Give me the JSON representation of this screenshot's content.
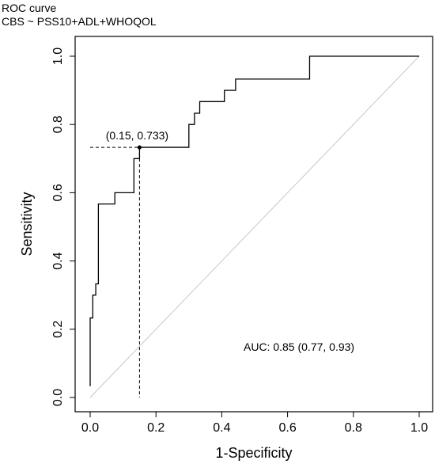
{
  "header": {
    "title": "ROC curve",
    "subtitle": "CBS ~ PSS10+ADL+WHOQOL"
  },
  "chart_data": {
    "type": "line",
    "title": "ROC curve",
    "subtitle": "CBS ~ PSS10+ADL+WHOQOL",
    "xlabel": "1-Specificity",
    "ylabel": "Sensitivity",
    "xlim": [
      0,
      1
    ],
    "ylim": [
      0,
      1
    ],
    "xticks": [
      "0.0",
      "0.2",
      "0.4",
      "0.6",
      "0.8",
      "1.0"
    ],
    "yticks": [
      "0.0",
      "0.2",
      "0.4",
      "0.6",
      "0.8",
      "1.0"
    ],
    "grid": false,
    "legend": "none",
    "series": [
      {
        "x": [
          0.0,
          0.0,
          0.008,
          0.008,
          0.017,
          0.017,
          0.025,
          0.025,
          0.042,
          0.042,
          0.05,
          0.05,
          0.075,
          0.075,
          0.083,
          0.083,
          0.133,
          0.133,
          0.15,
          0.15,
          0.3,
          0.3,
          0.317,
          0.317,
          0.333,
          0.333,
          0.35,
          0.35,
          0.408,
          0.408,
          0.442,
          0.442,
          0.458,
          0.458,
          0.667,
          0.667,
          1.0
        ],
        "y": [
          0.033,
          0.233,
          0.233,
          0.3,
          0.3,
          0.333,
          0.333,
          0.567,
          0.567,
          0.567,
          0.567,
          0.567,
          0.567,
          0.6,
          0.6,
          0.6,
          0.6,
          0.7,
          0.7,
          0.733,
          0.733,
          0.8,
          0.8,
          0.833,
          0.833,
          0.867,
          0.867,
          0.867,
          0.867,
          0.9,
          0.9,
          0.933,
          0.933,
          0.933,
          0.933,
          1.0,
          1.0
        ]
      }
    ],
    "reference_line": {
      "x": [
        0,
        1
      ],
      "y": [
        0,
        1
      ],
      "color": "#c8c8c8"
    },
    "optimal_point": {
      "x": 0.15,
      "y": 0.733,
      "label": "(0.15, 0.733)"
    },
    "auc_label": "AUC: 0.85 (0.77, 0.93)",
    "colors": {
      "curve": "#000000",
      "diagonal": "#c8c8c8"
    }
  }
}
